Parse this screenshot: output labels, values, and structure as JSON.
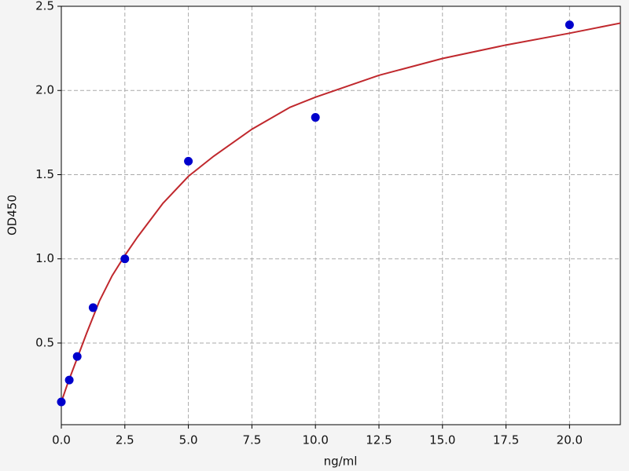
{
  "chart_data": {
    "type": "scatter",
    "x_label": "ng/ml",
    "y_label": "OD450",
    "xlim": [
      0,
      22
    ],
    "ylim": [
      0.015,
      2.5
    ],
    "xticks": [
      {
        "value": 0,
        "label": "0.0"
      },
      2.5,
      {
        "value": 5,
        "label": "5.0"
      },
      7.5,
      {
        "value": 10,
        "label": "10.0"
      },
      12.5,
      {
        "value": 15,
        "label": "15.0"
      },
      17.5,
      {
        "value": 20,
        "label": "20.0"
      }
    ],
    "yticks": [
      0.5,
      {
        "value": 1,
        "label": "1.0"
      },
      1.5,
      {
        "value": 2,
        "label": "2.0"
      },
      2.5
    ],
    "grid": true,
    "series": [
      {
        "kind": "points",
        "color": "#0000cc",
        "x": [
          0,
          0.3125,
          0.625,
          1.25,
          2.5,
          5,
          10,
          20
        ],
        "values": [
          0.15,
          0.28,
          0.42,
          0.71,
          1.0,
          1.58,
          1.84,
          2.39
        ]
      },
      {
        "kind": "line",
        "color": "#c0282d",
        "x": [
          0,
          0.25,
          0.5,
          1,
          1.5,
          2,
          2.5,
          3,
          4,
          5,
          6,
          7.5,
          9,
          10,
          12.5,
          15,
          17.5,
          20,
          22
        ],
        "values": [
          0.15,
          0.26,
          0.36,
          0.56,
          0.75,
          0.9,
          1.02,
          1.13,
          1.33,
          1.49,
          1.61,
          1.77,
          1.9,
          1.96,
          2.09,
          2.19,
          2.27,
          2.34,
          2.4
        ]
      }
    ]
  }
}
